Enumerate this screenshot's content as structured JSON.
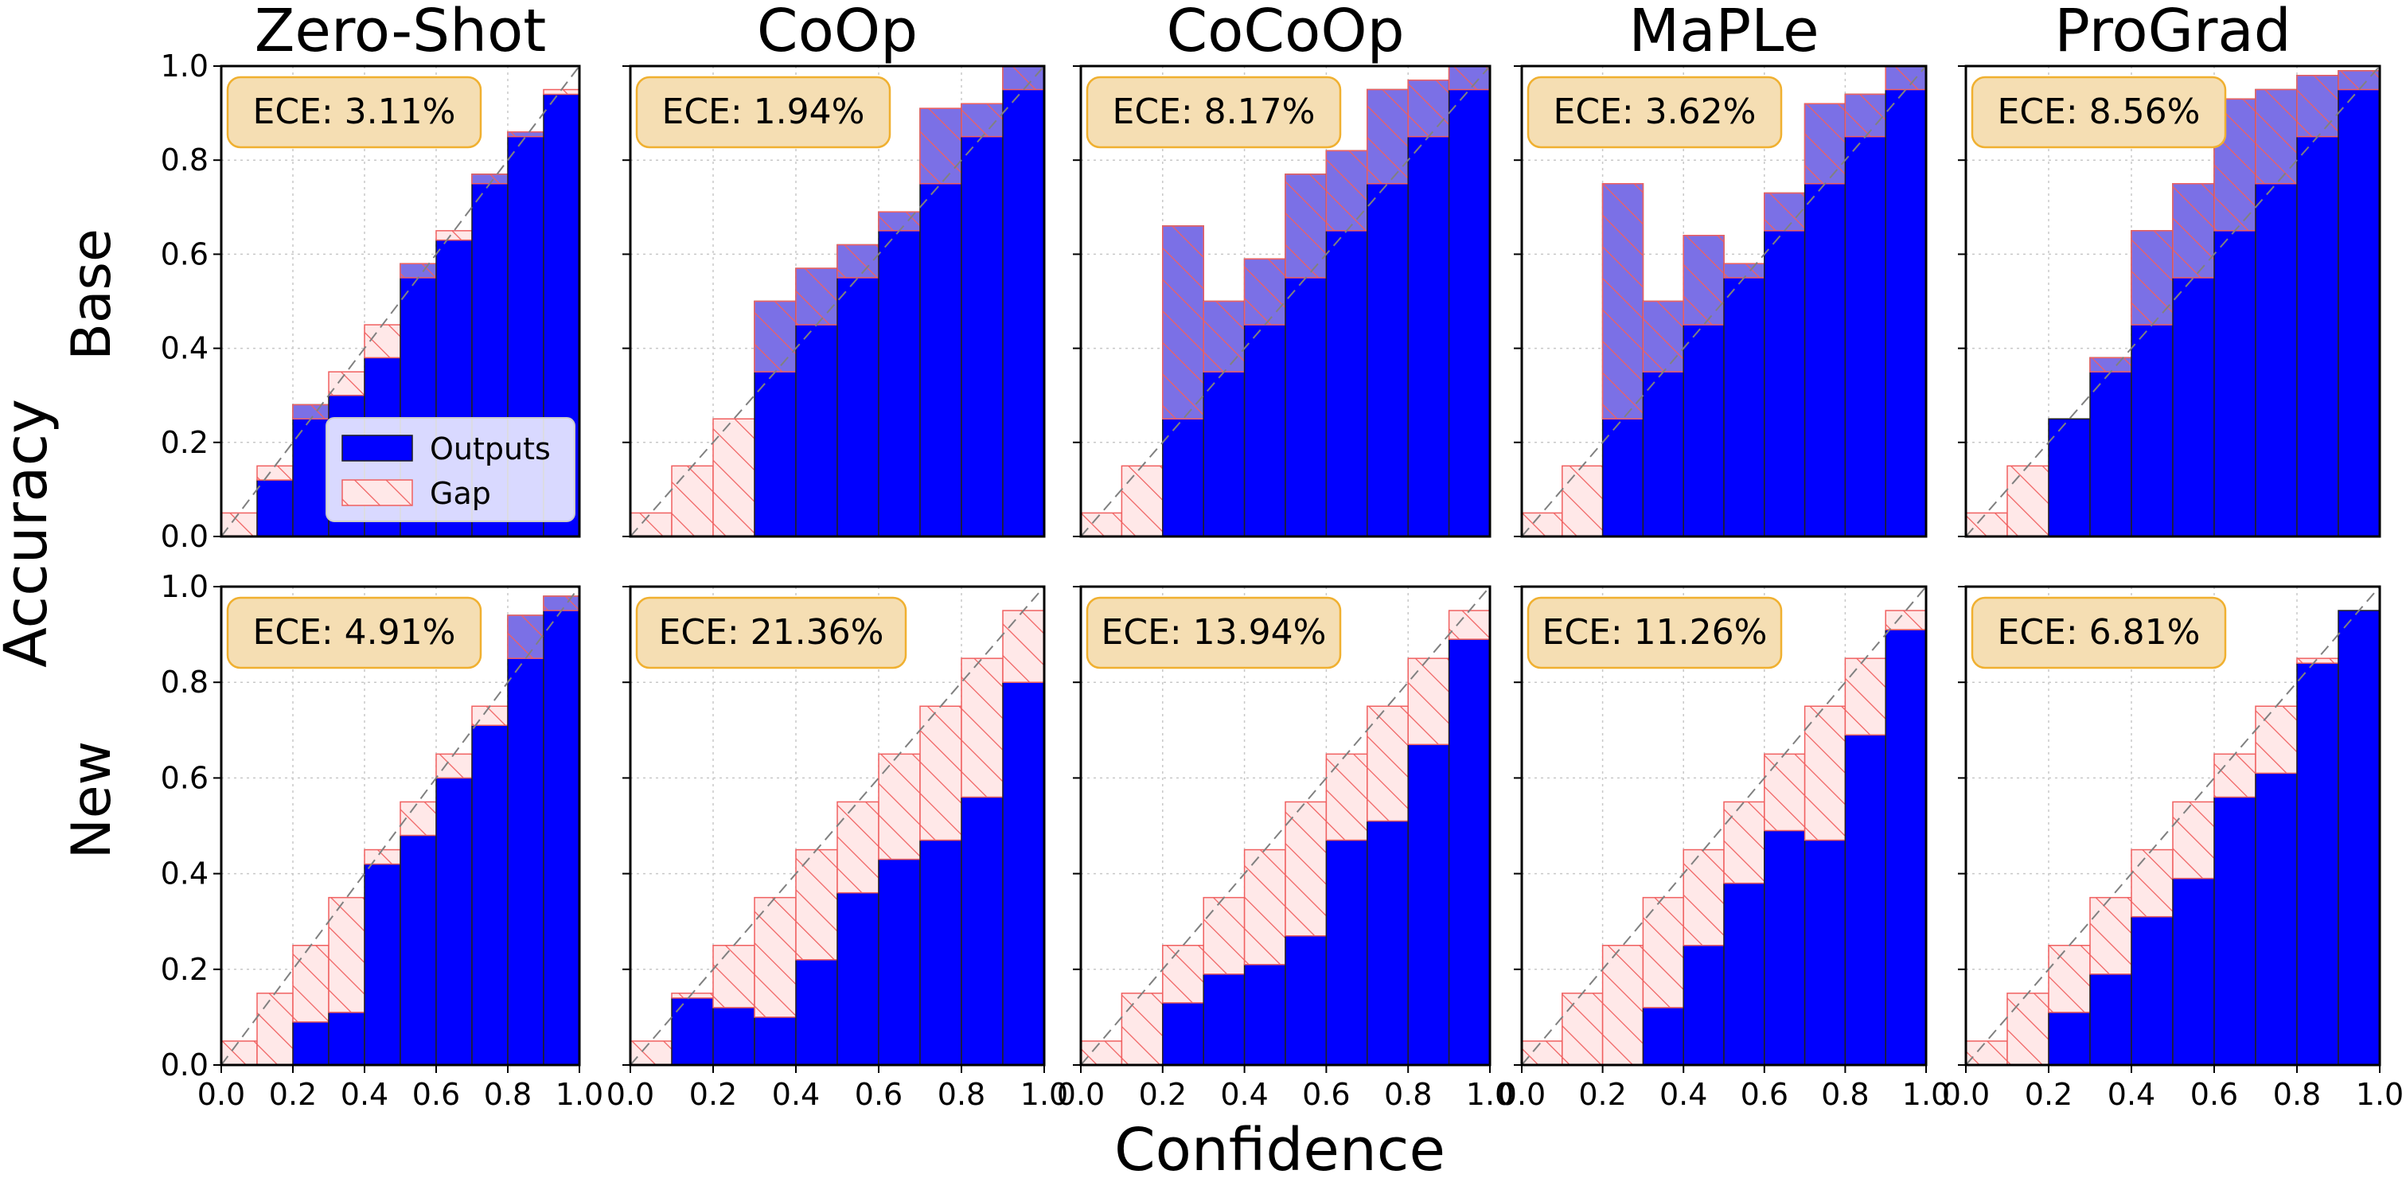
{
  "figure": {
    "row_labels": [
      "Base",
      "New"
    ],
    "ylabel": "Accuracy",
    "xlabel": "Confidence",
    "legend": {
      "outputs": "Outputs",
      "gap": "Gap"
    }
  },
  "colors": {
    "outputs": "#0000ff",
    "gap_base_over": "#7b70e6",
    "gap_under_fill": "#ffe8e8",
    "gap_hatch": "#f06060",
    "ece_box_fill": "#f5deb3",
    "ece_box_border": "#f0b030",
    "diagonal": "#808080"
  },
  "chart_data": [
    {
      "type": "bar",
      "title": "Zero-Shot",
      "row": "Base",
      "annotation": "ECE: 3.11%",
      "bin_centers": [
        0.05,
        0.15,
        0.25,
        0.35,
        0.45,
        0.55,
        0.65,
        0.75,
        0.85,
        0.95
      ],
      "outputs": [
        0.0,
        0.12,
        0.28,
        0.3,
        0.38,
        0.58,
        0.63,
        0.77,
        0.86,
        0.94
      ],
      "xlim": [
        0,
        1
      ],
      "ylim": [
        0,
        1
      ],
      "grid": true,
      "legend": "lower-right"
    },
    {
      "type": "bar",
      "title": "CoOp",
      "row": "Base",
      "annotation": "ECE: 1.94%",
      "bin_centers": [
        0.05,
        0.15,
        0.25,
        0.35,
        0.45,
        0.55,
        0.65,
        0.75,
        0.85,
        0.95
      ],
      "outputs": [
        0.0,
        0.0,
        0.0,
        0.5,
        0.57,
        0.62,
        0.69,
        0.91,
        0.92,
        1.0
      ],
      "xlim": [
        0,
        1
      ],
      "ylim": [
        0,
        1
      ],
      "grid": true
    },
    {
      "type": "bar",
      "title": "CoCoOp",
      "row": "Base",
      "annotation": "ECE: 8.17%",
      "bin_centers": [
        0.05,
        0.15,
        0.25,
        0.35,
        0.45,
        0.55,
        0.65,
        0.75,
        0.85,
        0.95
      ],
      "outputs": [
        0.0,
        0.0,
        0.66,
        0.5,
        0.59,
        0.77,
        0.82,
        0.95,
        0.97,
        1.0
      ],
      "xlim": [
        0,
        1
      ],
      "ylim": [
        0,
        1
      ],
      "grid": true
    },
    {
      "type": "bar",
      "title": "MaPLe",
      "row": "Base",
      "annotation": "ECE: 3.62%",
      "bin_centers": [
        0.05,
        0.15,
        0.25,
        0.35,
        0.45,
        0.55,
        0.65,
        0.75,
        0.85,
        0.95
      ],
      "outputs": [
        0.0,
        0.0,
        0.75,
        0.5,
        0.64,
        0.58,
        0.73,
        0.92,
        0.94,
        1.0
      ],
      "xlim": [
        0,
        1
      ],
      "ylim": [
        0,
        1
      ],
      "grid": true
    },
    {
      "type": "bar",
      "title": "ProGrad",
      "row": "Base",
      "annotation": "ECE: 8.56%",
      "bin_centers": [
        0.05,
        0.15,
        0.25,
        0.35,
        0.45,
        0.55,
        0.65,
        0.75,
        0.85,
        0.95
      ],
      "outputs": [
        0.0,
        0.0,
        0.25,
        0.38,
        0.65,
        0.75,
        0.93,
        0.95,
        0.98,
        0.99
      ],
      "xlim": [
        0,
        1
      ],
      "ylim": [
        0,
        1
      ],
      "grid": true
    },
    {
      "type": "bar",
      "title": "Zero-Shot",
      "row": "New",
      "annotation": "ECE: 4.91%",
      "bin_centers": [
        0.05,
        0.15,
        0.25,
        0.35,
        0.45,
        0.55,
        0.65,
        0.75,
        0.85,
        0.95
      ],
      "outputs": [
        0.0,
        0.0,
        0.09,
        0.11,
        0.42,
        0.48,
        0.6,
        0.71,
        0.94,
        0.98
      ],
      "xlim": [
        0,
        1
      ],
      "ylim": [
        0,
        1
      ],
      "grid": true
    },
    {
      "type": "bar",
      "title": "CoOp",
      "row": "New",
      "annotation": "ECE: 21.36%",
      "bin_centers": [
        0.05,
        0.15,
        0.25,
        0.35,
        0.45,
        0.55,
        0.65,
        0.75,
        0.85,
        0.95
      ],
      "outputs": [
        0.0,
        0.14,
        0.12,
        0.1,
        0.22,
        0.36,
        0.43,
        0.47,
        0.56,
        0.8
      ],
      "xlim": [
        0,
        1
      ],
      "ylim": [
        0,
        1
      ],
      "grid": true
    },
    {
      "type": "bar",
      "title": "CoCoOp",
      "row": "New",
      "annotation": "ECE: 13.94%",
      "bin_centers": [
        0.05,
        0.15,
        0.25,
        0.35,
        0.45,
        0.55,
        0.65,
        0.75,
        0.85,
        0.95
      ],
      "outputs": [
        0.0,
        0.0,
        0.13,
        0.19,
        0.21,
        0.27,
        0.47,
        0.51,
        0.67,
        0.89
      ],
      "xlim": [
        0,
        1
      ],
      "ylim": [
        0,
        1
      ],
      "grid": true
    },
    {
      "type": "bar",
      "title": "MaPLe",
      "row": "New",
      "annotation": "ECE: 11.26%",
      "bin_centers": [
        0.05,
        0.15,
        0.25,
        0.35,
        0.45,
        0.55,
        0.65,
        0.75,
        0.85,
        0.95
      ],
      "outputs": [
        0.0,
        0.0,
        0.0,
        0.12,
        0.25,
        0.38,
        0.49,
        0.47,
        0.69,
        0.91
      ],
      "xlim": [
        0,
        1
      ],
      "ylim": [
        0,
        1
      ],
      "grid": true
    },
    {
      "type": "bar",
      "title": "ProGrad",
      "row": "New",
      "annotation": "ECE: 6.81%",
      "bin_centers": [
        0.05,
        0.15,
        0.25,
        0.35,
        0.45,
        0.55,
        0.65,
        0.75,
        0.85,
        0.95
      ],
      "outputs": [
        0.0,
        0.0,
        0.11,
        0.19,
        0.31,
        0.39,
        0.56,
        0.61,
        0.84,
        0.95
      ],
      "xlim": [
        0,
        1
      ],
      "ylim": [
        0,
        1
      ],
      "grid": true
    }
  ],
  "ticks": {
    "y": [
      "0.0",
      "0.2",
      "0.4",
      "0.6",
      "0.8",
      "1.0"
    ],
    "x": [
      "0.0",
      "0.2",
      "0.4",
      "0.6",
      "0.8",
      "1.0"
    ]
  }
}
